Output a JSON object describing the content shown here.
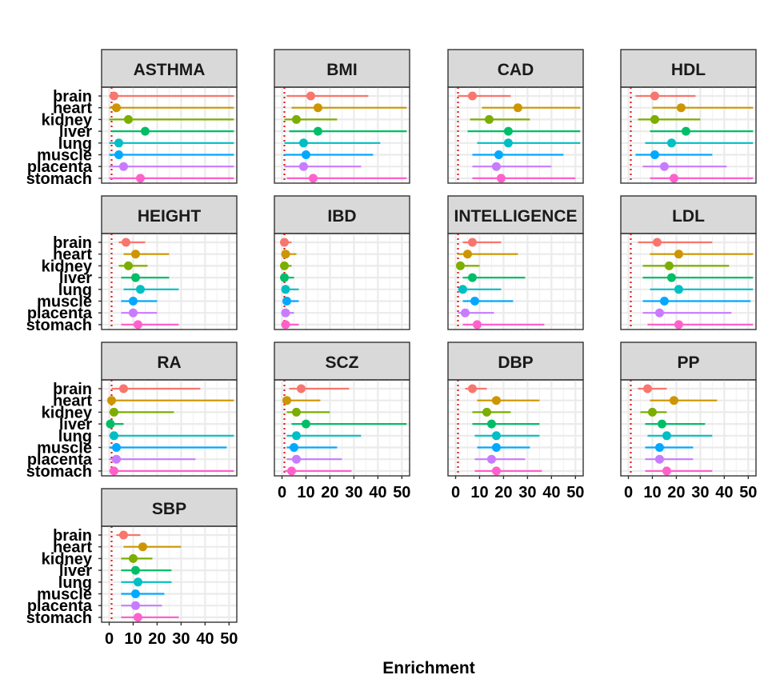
{
  "chart_data": {
    "type": "forest",
    "xlabel": "Enrichment",
    "ylabel": "",
    "xlim": [
      0,
      52
    ],
    "x_ticks": [
      0,
      10,
      20,
      30,
      40,
      50
    ],
    "reference_line": 1,
    "reference_line_color": "#e41a1c",
    "grid": true,
    "legend": "none",
    "categories": [
      "brain",
      "heart",
      "kidney",
      "liver",
      "lung",
      "muscle",
      "placenta",
      "stomach"
    ],
    "category_colors": [
      "#F8766D",
      "#CD9600",
      "#7CAE00",
      "#00BE67",
      "#00BFC4",
      "#00A9FF",
      "#C77CFF",
      "#FF61CC"
    ],
    "panels": [
      {
        "name": "ASTHMA",
        "estimates": [
          2,
          3,
          8,
          15,
          4,
          4,
          6,
          13
        ],
        "lower": [
          0,
          0,
          0,
          1,
          0,
          0,
          0,
          0
        ],
        "upper": [
          52,
          52,
          52,
          52,
          52,
          52,
          52,
          52
        ]
      },
      {
        "name": "BMI",
        "estimates": [
          12,
          15,
          6,
          15,
          9,
          10,
          9,
          13
        ],
        "lower": [
          2,
          4,
          1,
          3,
          1,
          1,
          1,
          2
        ],
        "upper": [
          36,
          52,
          23,
          52,
          41,
          38,
          33,
          52
        ]
      },
      {
        "name": "CAD",
        "estimates": [
          7,
          26,
          14,
          22,
          22,
          18,
          17,
          19
        ],
        "lower": [
          1,
          11,
          6,
          5,
          9,
          7,
          7,
          7
        ],
        "upper": [
          23,
          52,
          31,
          52,
          52,
          45,
          40,
          50
        ]
      },
      {
        "name": "HDL",
        "estimates": [
          11,
          22,
          11,
          24,
          18,
          11,
          15,
          19
        ],
        "lower": [
          3,
          10,
          4,
          9,
          7,
          3,
          6,
          9
        ],
        "upper": [
          28,
          52,
          30,
          52,
          52,
          35,
          41,
          52
        ]
      },
      {
        "name": "HEIGHT",
        "estimates": [
          7,
          11,
          8,
          11,
          13,
          10,
          10,
          12
        ],
        "lower": [
          4,
          6,
          4,
          5,
          6,
          5,
          5,
          5
        ],
        "upper": [
          15,
          25,
          16,
          25,
          29,
          20,
          20,
          29
        ]
      },
      {
        "name": "IBD",
        "estimates": [
          1,
          1.5,
          1,
          1,
          1.5,
          2,
          1.5,
          1.5
        ],
        "lower": [
          0.5,
          0.5,
          0.5,
          0.5,
          0.5,
          0.5,
          0.5,
          0.5
        ],
        "upper": [
          4,
          6,
          4,
          5,
          7,
          7,
          5,
          7
        ]
      },
      {
        "name": "INTELLIGENCE",
        "estimates": [
          7,
          5,
          2,
          7,
          3,
          8,
          4,
          9
        ],
        "lower": [
          3,
          1,
          1,
          3,
          1,
          3,
          1,
          3
        ],
        "upper": [
          19,
          26,
          10,
          29,
          19,
          24,
          16,
          37
        ]
      },
      {
        "name": "LDL",
        "estimates": [
          12,
          21,
          17,
          18,
          21,
          15,
          13,
          21
        ],
        "lower": [
          4,
          9,
          6,
          6,
          9,
          6,
          6,
          8
        ],
        "upper": [
          35,
          52,
          42,
          52,
          52,
          51,
          43,
          52
        ]
      },
      {
        "name": "RA",
        "estimates": [
          6,
          1,
          2,
          0.5,
          2,
          3,
          3,
          2
        ],
        "lower": [
          1,
          0,
          0,
          0,
          0,
          0,
          0,
          0
        ],
        "upper": [
          38,
          52,
          27,
          6,
          52,
          49,
          36,
          52
        ]
      },
      {
        "name": "SCZ",
        "estimates": [
          8,
          2,
          6,
          10,
          6,
          5,
          6,
          4
        ],
        "lower": [
          3,
          0.5,
          2,
          4,
          2,
          2,
          2,
          1
        ],
        "upper": [
          28,
          16,
          20,
          52,
          33,
          23,
          25,
          29
        ]
      },
      {
        "name": "DBP",
        "estimates": [
          7,
          17,
          13,
          15,
          17,
          17,
          15,
          17
        ],
        "lower": [
          4,
          9,
          7,
          7,
          8,
          9,
          8,
          8
        ],
        "upper": [
          13,
          35,
          23,
          35,
          35,
          31,
          29,
          36
        ]
      },
      {
        "name": "PP",
        "estimates": [
          8,
          19,
          10,
          14,
          16,
          13,
          13,
          16
        ],
        "lower": [
          4,
          9,
          5,
          7,
          8,
          7,
          7,
          7
        ],
        "upper": [
          16,
          37,
          16,
          32,
          35,
          27,
          27,
          35
        ]
      },
      {
        "name": "SBP",
        "estimates": [
          6,
          14,
          10,
          11,
          12,
          11,
          11,
          12
        ],
        "lower": [
          3,
          6,
          5,
          5,
          5,
          5,
          5,
          5
        ],
        "upper": [
          13,
          30,
          18,
          26,
          26,
          23,
          22,
          29
        ]
      }
    ]
  }
}
